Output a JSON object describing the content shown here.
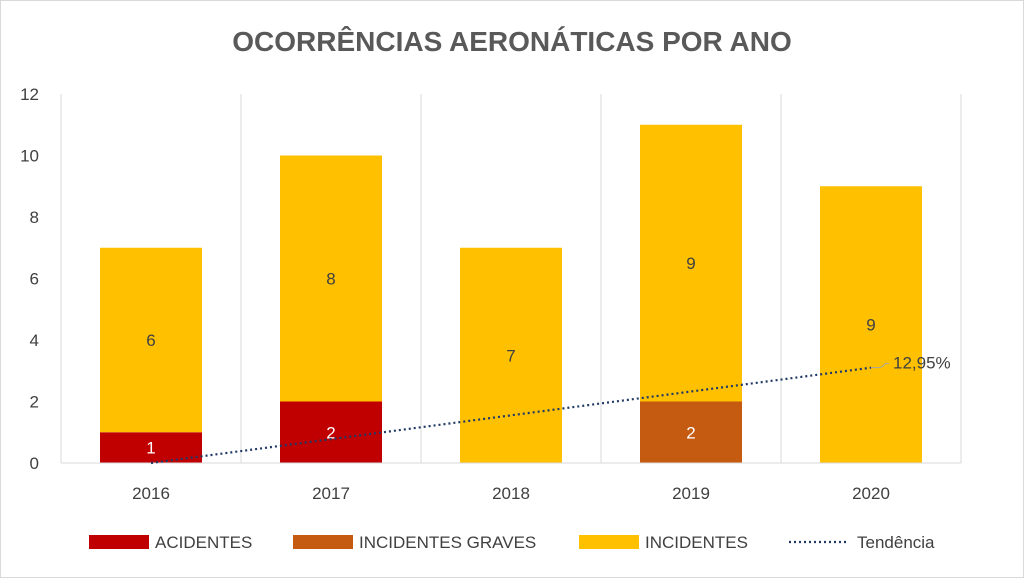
{
  "chart_data": {
    "type": "bar",
    "stacked": true,
    "title": "OCORRÊNCIAS AERONÁTICAS POR ANO",
    "categories": [
      "2016",
      "2017",
      "2018",
      "2019",
      "2020"
    ],
    "ylim": [
      0,
      12
    ],
    "yticks": [
      "0",
      "2",
      "4",
      "6",
      "8",
      "10",
      "12"
    ],
    "xlabel": "",
    "ylabel": "",
    "grid": "vertical category separators",
    "legend_position": "bottom",
    "series": [
      {
        "name": "ACIDENTES",
        "color": "#C00000",
        "label_color": "#ffffff",
        "values": [
          1,
          2,
          0,
          0,
          0
        ],
        "labels": [
          "1",
          "2",
          "",
          "",
          ""
        ]
      },
      {
        "name": "INCIDENTES GRAVES",
        "color": "#C55A11",
        "label_color": "#ffffff",
        "values": [
          0,
          0,
          0,
          2,
          0
        ],
        "labels": [
          "",
          "",
          "",
          "2",
          ""
        ]
      },
      {
        "name": "INCIDENTES",
        "color": "#FFC000",
        "label_color": "#404040",
        "values": [
          6,
          8,
          7,
          9,
          9
        ],
        "labels": [
          "6",
          "8",
          "7",
          "9",
          "9"
        ]
      }
    ],
    "trendline": {
      "name": "Tendência",
      "color": "#1F3864",
      "style": "dotted",
      "start_value": 0,
      "end_value": 3.1,
      "label": "12,95%"
    }
  }
}
